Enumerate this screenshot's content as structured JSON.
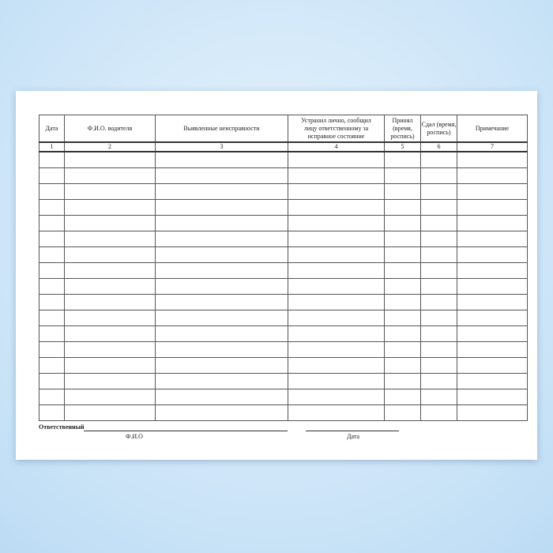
{
  "headers": [
    "Дата",
    "Ф.И.О. водителя",
    "Выявленные неисправности",
    "Устранил лично, сообщил лицу ответственному за исправное состояние",
    "Принял (время, роспись)",
    "Сдал (время, роспись)",
    "Примечание"
  ],
  "numbers": [
    "1",
    "2",
    "3",
    "4",
    "5",
    "6",
    "7"
  ],
  "empty_rows": 17,
  "footer": {
    "responsible": "Ответственный",
    "fio_caption": "Ф.И.О",
    "date_caption": "Дата"
  }
}
